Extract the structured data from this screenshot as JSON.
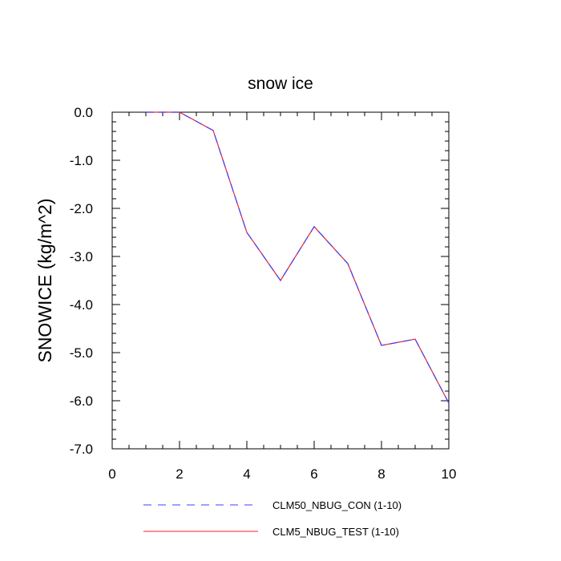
{
  "chart_data": {
    "type": "line",
    "title": "snow ice",
    "xlabel": "",
    "ylabel": "SNOWICE  (kg/m^2)",
    "xlim": [
      0,
      10
    ],
    "ylim": [
      -7.0,
      0.0
    ],
    "x_ticks": [
      0,
      2,
      4,
      6,
      8,
      10
    ],
    "x_tick_labels": [
      "0",
      "2",
      "4",
      "6",
      "8",
      "10"
    ],
    "y_ticks": [
      0.0,
      -1.0,
      -2.0,
      -3.0,
      -4.0,
      -5.0,
      -6.0,
      -7.0
    ],
    "y_tick_labels": [
      "0.0",
      "-1.0",
      "-2.0",
      "-3.0",
      "-4.0",
      "-5.0",
      "-6.0",
      "-7.0"
    ],
    "grid": false,
    "legend_position": "bottom",
    "series": [
      {
        "name": "CLM50_NBUG_CON (1-10)",
        "color": "#4040ff",
        "dash": "dashed",
        "x": [
          1,
          2,
          3,
          4,
          5,
          6,
          7,
          8,
          9,
          10
        ],
        "y": [
          0.0,
          0.0,
          -0.38,
          -2.5,
          -3.5,
          -2.38,
          -3.15,
          -4.85,
          -4.72,
          -6.05
        ]
      },
      {
        "name": "CLM5_NBUG_TEST (1-10)",
        "color": "#ff2020",
        "dash": "solid",
        "x": [
          1,
          2,
          3,
          4,
          5,
          6,
          7,
          8,
          9,
          10
        ],
        "y": [
          0.0,
          0.0,
          -0.38,
          -2.5,
          -3.5,
          -2.38,
          -3.15,
          -4.85,
          -4.72,
          -6.05
        ]
      }
    ]
  }
}
